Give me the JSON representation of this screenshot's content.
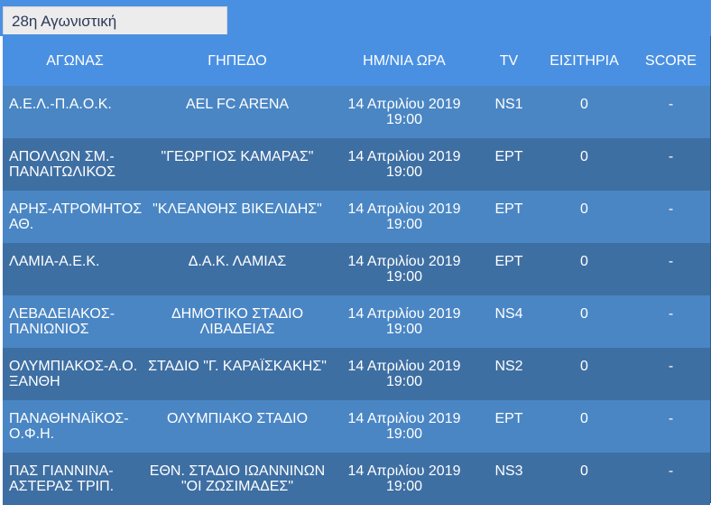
{
  "tab": {
    "label": "28η Αγωνιστική"
  },
  "header": {
    "match": "ΑΓΩΝΑΣ",
    "stadium": "ΓΗΠΕΔΟ",
    "datetime": "ΗΜ/ΝΙΑ ΩΡΑ",
    "tv": "TV",
    "tickets": "ΕΙΣΙΤΗΡΙΑ",
    "score": "SCORE"
  },
  "rows": [
    {
      "match": "Α.Ε.Λ.-Π.Α.Ο.Κ.",
      "stadium": "AEL FC ARENA",
      "date": "14 Απριλίου 2019",
      "time": "19:00",
      "tv": "NS1",
      "tickets": "0",
      "score": "-"
    },
    {
      "match": "ΑΠΟΛΛΩΝ ΣΜ.-ΠΑΝΑΙΤΩΛΙΚΟΣ",
      "stadium": "\"ΓΕΩΡΓΙΟΣ ΚΑΜΑΡΑΣ\"",
      "date": "14 Απριλίου 2019",
      "time": "19:00",
      "tv": "ΕΡΤ",
      "tickets": "0",
      "score": "-"
    },
    {
      "match": "ΑΡΗΣ-ΑΤΡΟΜΗΤΟΣ ΑΘ.",
      "stadium": "\"ΚΛΕΑΝΘΗΣ ΒΙΚΕΛΙΔΗΣ\"",
      "date": "14 Απριλίου 2019",
      "time": "19:00",
      "tv": "ΕΡΤ",
      "tickets": "0",
      "score": "-"
    },
    {
      "match": "ΛΑΜΙΑ-Α.Ε.Κ.",
      "stadium": "Δ.Α.Κ. ΛΑΜΙΑΣ",
      "date": "14 Απριλίου 2019",
      "time": "19:00",
      "tv": "ΕΡΤ",
      "tickets": "0",
      "score": "-"
    },
    {
      "match": "ΛΕΒΑΔΕΙΑΚΟΣ-ΠΑΝΙΩΝΙΟΣ",
      "stadium": "ΔΗΜΟΤΙΚΟ ΣΤΑΔΙΟ ΛΙΒΑΔΕΙΑΣ",
      "date": "14 Απριλίου 2019",
      "time": "19:00",
      "tv": "NS4",
      "tickets": "0",
      "score": "-"
    },
    {
      "match": "ΟΛΥΜΠΙΑΚΟΣ-Α.Ο. ΞΑΝΘΗ",
      "stadium": "ΣΤΑΔΙΟ \"Γ. ΚΑΡΑΪΣΚΑΚΗΣ\"",
      "date": "14 Απριλίου 2019",
      "time": "19:00",
      "tv": "NS2",
      "tickets": "0",
      "score": "-"
    },
    {
      "match": "ΠΑΝΑΘΗΝΑΪΚΟΣ-Ο.Φ.Η.",
      "stadium": "ΟΛΥΜΠΙΑΚΟ ΣΤΑΔΙΟ",
      "date": "14 Απριλίου 2019",
      "time": "19:00",
      "tv": "ΕΡΤ",
      "tickets": "0",
      "score": "-"
    },
    {
      "match": "ΠΑΣ ΓΙΑΝΝΙΝΑ-ΑΣΤΕΡΑΣ ΤΡΙΠ.",
      "stadium": "ΕΘΝ. ΣΤΑΔΙΟ ΙΩΑΝΝΙΝΩΝ \"ΟΙ ΖΩΣΙΜΑΔΕΣ\"",
      "date": "14 Απριλίου 2019",
      "time": "19:00",
      "tv": "NS3",
      "tickets": "0",
      "score": "-"
    }
  ]
}
